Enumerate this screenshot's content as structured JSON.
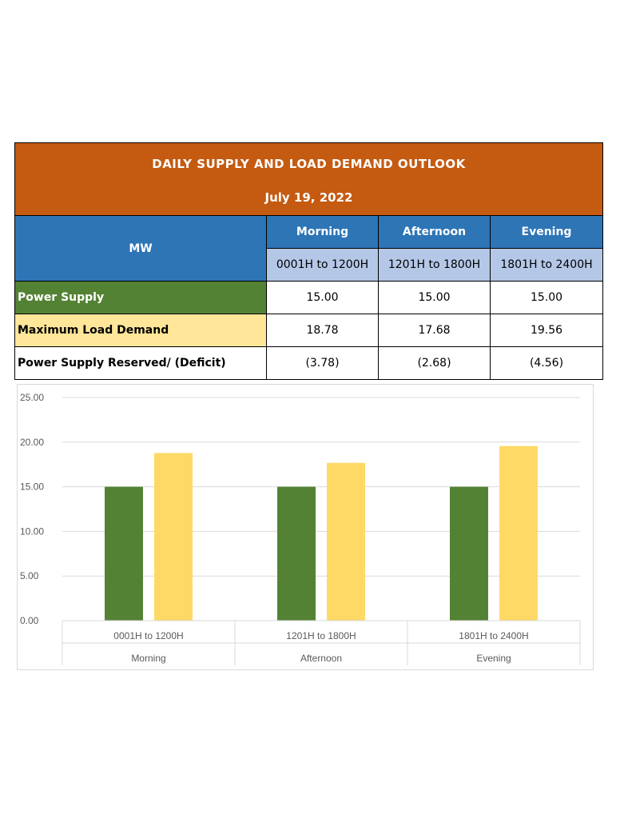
{
  "table": {
    "title": "DAILY SUPPLY AND LOAD DEMAND OUTLOOK",
    "date": "July 19, 2022",
    "unit_label": "MW",
    "periods": [
      {
        "name": "Morning",
        "range": "0001H to 1200H"
      },
      {
        "name": "Afternoon",
        "range": "1201H to 1800H"
      },
      {
        "name": "Evening",
        "range": "1801H to 2400H"
      }
    ],
    "rows": [
      {
        "label": "Power Supply",
        "values": [
          "15.00",
          "15.00",
          "15.00"
        ]
      },
      {
        "label": "Maximum Load Demand",
        "values": [
          "18.78",
          "17.68",
          "19.56"
        ]
      },
      {
        "label": "Power Supply Reserved/ (Deficit)",
        "values": [
          "(3.78)",
          "(2.68)",
          "(4.56)"
        ]
      }
    ],
    "colors": {
      "title_bg": "#c55a11",
      "header_bg": "#2e75b6",
      "range_bg": "#b4c7e7",
      "supply_bg": "#548235",
      "demand_bg": "#ffe699"
    }
  },
  "chart_data": {
    "type": "bar",
    "categories": [
      "0001H to 1200H",
      "1201H to 1800H",
      "1801H to 2400H"
    ],
    "category_groups": [
      "Morning",
      "Afternoon",
      "Evening"
    ],
    "series": [
      {
        "values": [
          15.0,
          15.0,
          15.0
        ],
        "color": "#548235"
      },
      {
        "values": [
          18.78,
          17.68,
          19.56
        ],
        "color": "#ffd966"
      }
    ],
    "y_ticks": [
      "0.00",
      "5.00",
      "10.00",
      "15.00",
      "20.00",
      "25.00"
    ],
    "ylim": [
      0,
      25
    ],
    "grid": true,
    "legend": "none"
  }
}
